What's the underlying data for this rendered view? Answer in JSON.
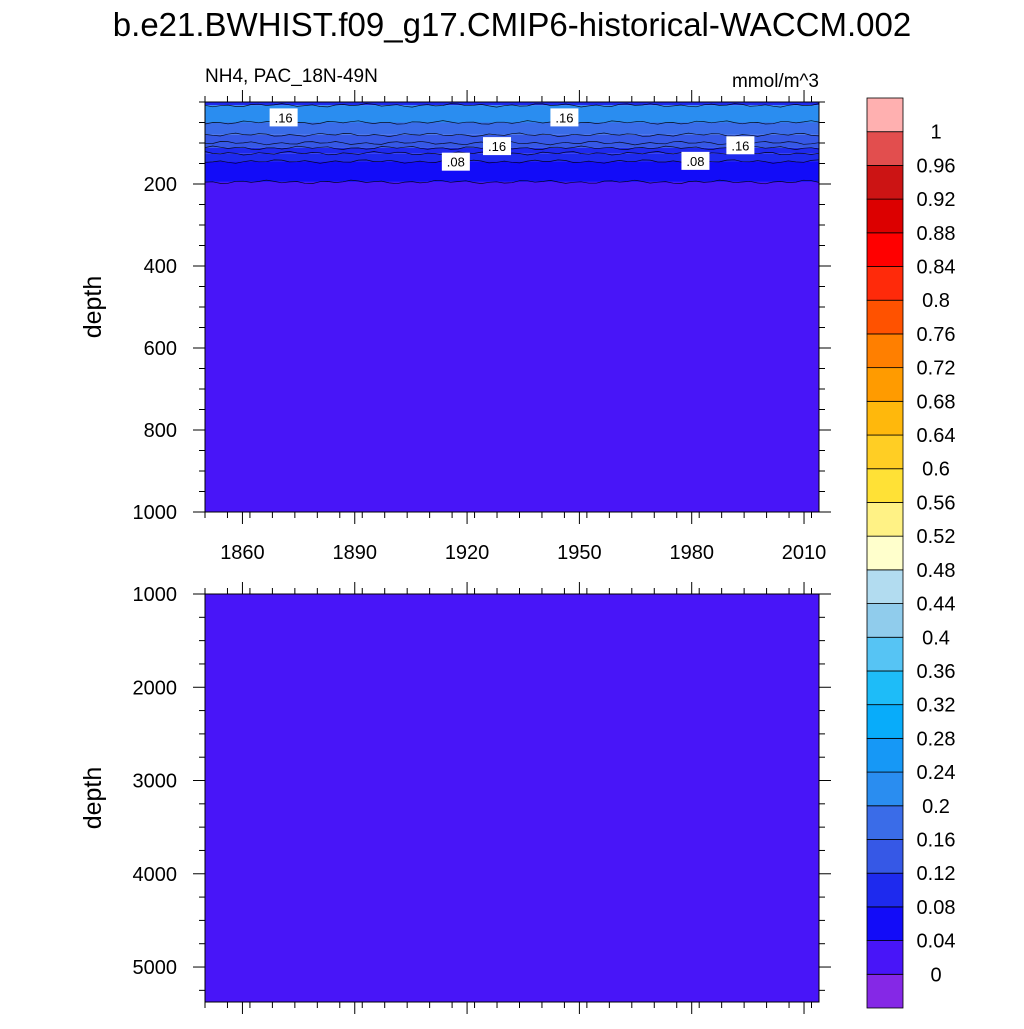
{
  "chart_data": {
    "type": "heatmap",
    "title": "b.e21.BWHIST.f09_g17.CMIP6-historical-WACCM.002",
    "subtitle_left": "NH4, PAC_18N-49N",
    "subtitle_right": "mmol/m^3",
    "x_range": [
      1850,
      2014
    ],
    "x_ticks": [
      1860,
      1890,
      1920,
      1950,
      1980,
      2010
    ],
    "x_tick_labels": [
      "1860",
      "1890",
      "1920",
      "1950",
      "1980",
      "2010"
    ],
    "panels": [
      {
        "name": "upper",
        "ylabel": "depth",
        "ylim": [
          0,
          1000
        ],
        "y_inverted": true,
        "y_ticks": [
          200,
          400,
          600,
          800,
          1000
        ],
        "y_tick_labels": [
          "200",
          "400",
          "600",
          "800",
          "1000"
        ],
        "bands": [
          {
            "from": 0,
            "to": 8,
            "value": 0.1
          },
          {
            "from": 8,
            "to": 50,
            "value": 0.2
          },
          {
            "from": 50,
            "to": 80,
            "value": 0.18
          },
          {
            "from": 80,
            "to": 100,
            "value": 0.14
          },
          {
            "from": 100,
            "to": 112,
            "value": 0.13
          },
          {
            "from": 112,
            "to": 125,
            "value": 0.1
          },
          {
            "from": 125,
            "to": 145,
            "value": 0.1
          },
          {
            "from": 145,
            "to": 195,
            "value": 0.06
          },
          {
            "from": 195,
            "to": 1000,
            "value": 0.02
          }
        ],
        "contour_depths": [
          8,
          50,
          80,
          100,
          112,
          125,
          145,
          195
        ],
        "contour_labels": [
          {
            "text": ".16",
            "x": 1871,
            "y": 40
          },
          {
            "text": ".16",
            "x": 1946,
            "y": 40
          },
          {
            "text": ".16",
            "x": 1928,
            "y": 110
          },
          {
            "text": ".16",
            "x": 1993,
            "y": 108
          },
          {
            "text": ".08",
            "x": 1917,
            "y": 148
          },
          {
            "text": ".08",
            "x": 1981,
            "y": 146
          }
        ]
      },
      {
        "name": "lower",
        "ylabel": "depth",
        "ylim": [
          1000,
          5375
        ],
        "y_inverted": true,
        "y_ticks": [
          1000,
          2000,
          3000,
          4000,
          5000
        ],
        "y_tick_labels": [
          "1000",
          "2000",
          "3000",
          "4000",
          "5000"
        ],
        "bands": [
          {
            "from": 1000,
            "to": 5375,
            "value": 0.02
          }
        ]
      }
    ],
    "colorbar": {
      "levels": [
        0,
        0.04,
        0.08,
        0.12,
        0.16,
        0.2,
        0.24,
        0.28,
        0.32,
        0.36,
        0.4,
        0.44,
        0.48,
        0.52,
        0.56,
        0.6,
        0.64,
        0.68,
        0.72,
        0.76,
        0.8,
        0.84,
        0.88,
        0.92,
        0.96,
        1
      ],
      "labels": [
        "0",
        "0.04",
        "0.08",
        "0.12",
        "0.16",
        "0.2",
        "0.24",
        "0.28",
        "0.32",
        "0.36",
        "0.4",
        "0.44",
        "0.48",
        "0.52",
        "0.56",
        "0.6",
        "0.64",
        "0.68",
        "0.72",
        "0.76",
        "0.8",
        "0.84",
        "0.88",
        "0.92",
        "0.96",
        "1"
      ],
      "colors": [
        "#8528E6",
        "#4815F8",
        "#120CF8",
        "#1E2AEE",
        "#3658E6",
        "#3A6CE8",
        "#2A8DF0",
        "#1698F6",
        "#08ACFA",
        "#1EBCF8",
        "#56C4F4",
        "#90CCEC",
        "#B2DCF0",
        "#FFFFCC",
        "#FFF285",
        "#FFE136",
        "#FFCE24",
        "#FFB80C",
        "#FF9B00",
        "#FF7F00",
        "#FF5200",
        "#FF2A0A",
        "#FF0000",
        "#DC0000",
        "#CC1414",
        "#E24E4E",
        "#FFB0B0"
      ]
    }
  }
}
